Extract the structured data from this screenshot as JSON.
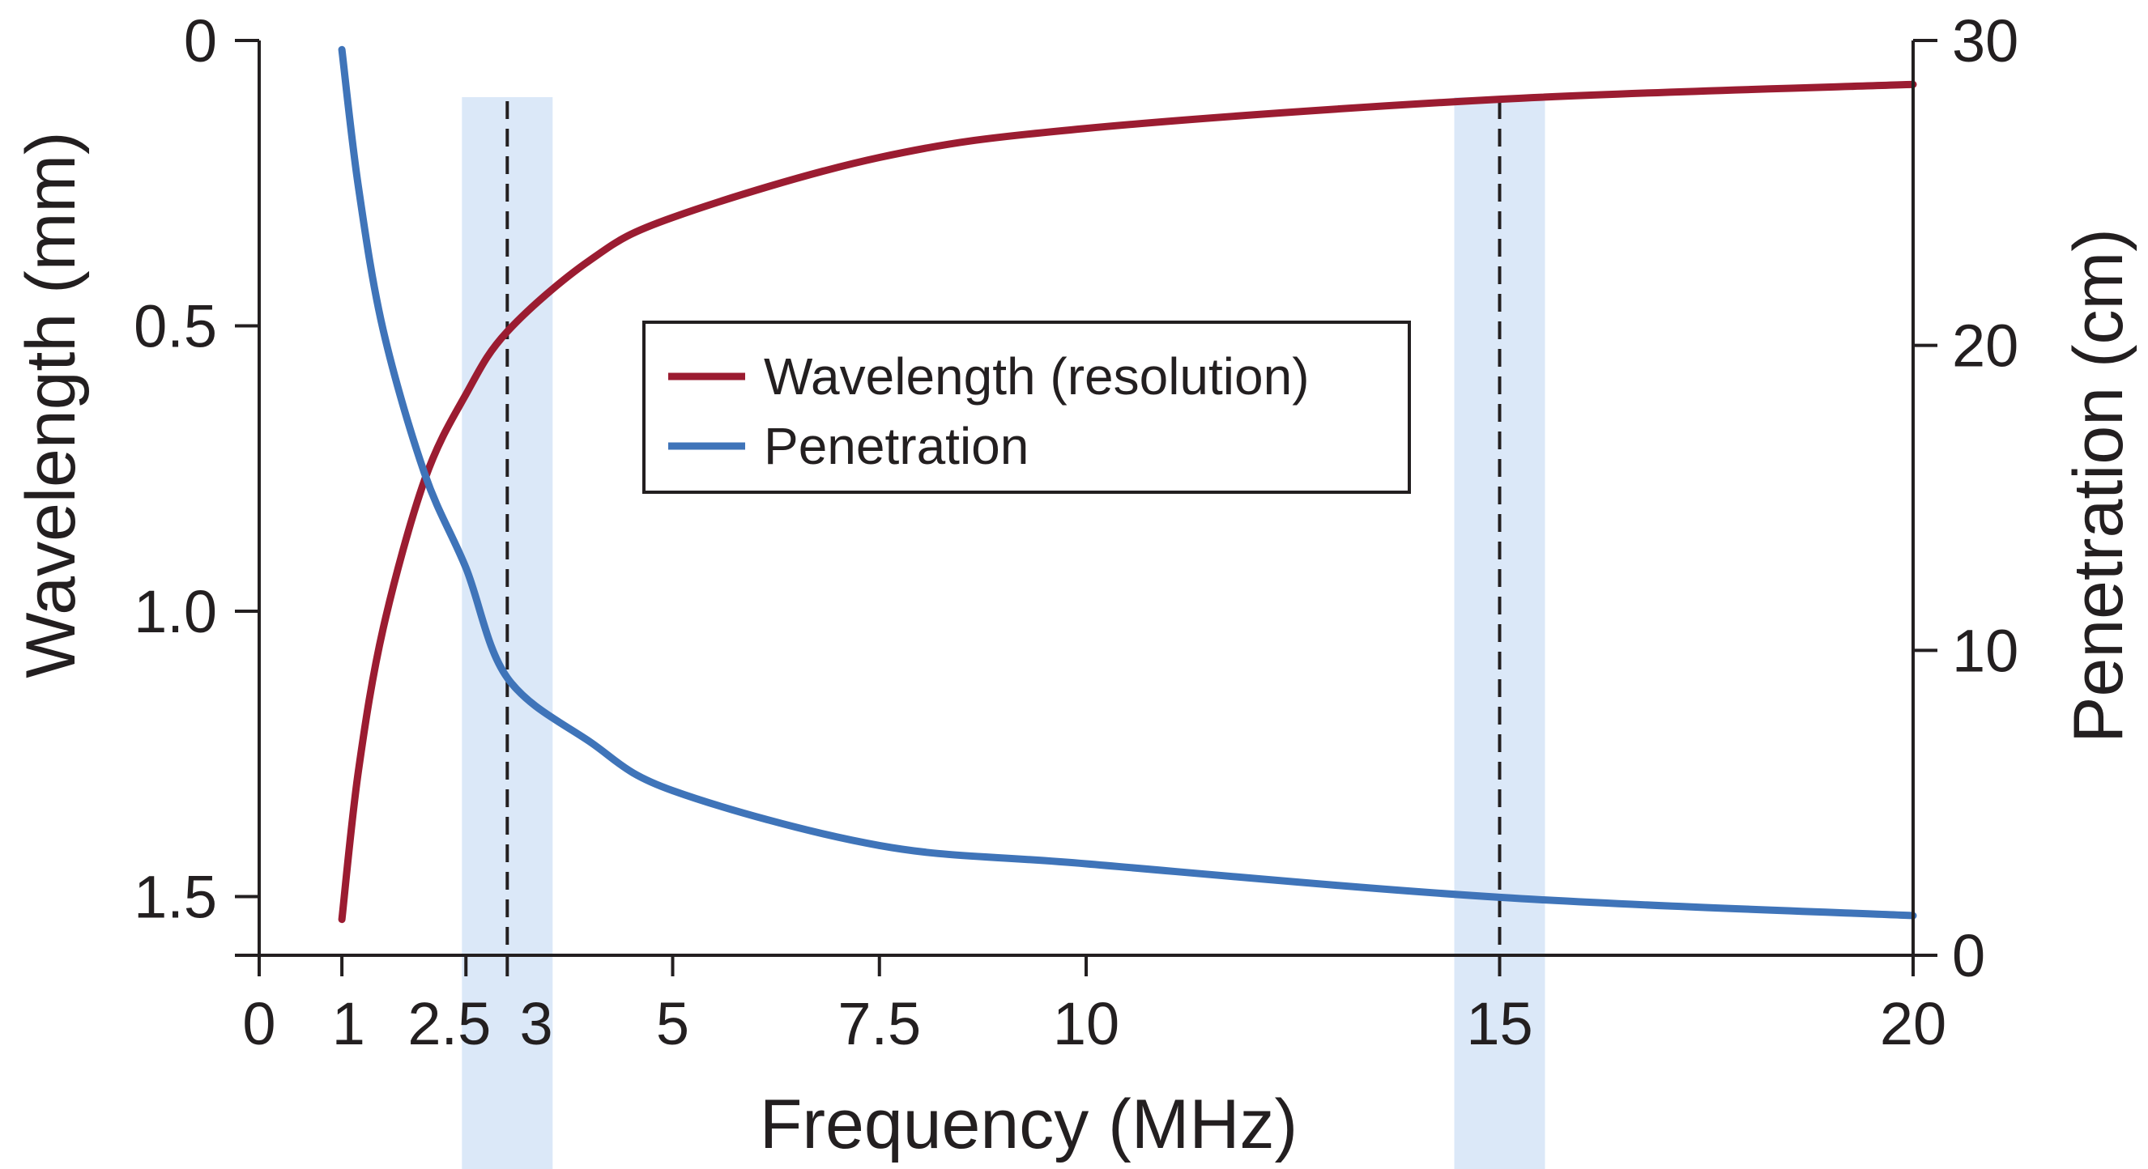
{
  "chart_data": {
    "type": "line",
    "xlabel": "Frequency (MHz)",
    "y_left_label": "Wavelength (mm)",
    "y_right_label": "Penetration (cm)",
    "x_tick_labels": [
      "0",
      "1",
      "2.5",
      "3",
      "5",
      "7.5",
      "10",
      "15",
      "20"
    ],
    "y_left_tick_labels": [
      "0",
      "0.5",
      "1.0",
      "1.5"
    ],
    "y_right_tick_labels": [
      "0",
      "10",
      "20",
      "30"
    ],
    "y_left_inverted": true,
    "grid": false,
    "legend_position": "center",
    "highlight_frequencies": [
      3,
      15
    ],
    "series": [
      {
        "name": "Wavelength (resolution)",
        "axis": "left",
        "color": "#9b1c31",
        "x": [
          1,
          1.2,
          1.5,
          2,
          2.5,
          3,
          4,
          5,
          7.5,
          10,
          15,
          20
        ],
        "y": [
          1.54,
          1.28,
          1.03,
          0.77,
          0.62,
          0.51,
          0.385,
          0.31,
          0.205,
          0.154,
          0.103,
          0.077
        ]
      },
      {
        "name": "Penetration",
        "axis": "right",
        "color": "#3f74b9",
        "x": [
          1,
          1.2,
          1.5,
          2,
          2.5,
          3,
          4,
          5,
          7.5,
          10,
          15,
          20
        ],
        "y": [
          29.7,
          25.2,
          20.5,
          15.8,
          12.7,
          9.1,
          7.0,
          5.4,
          3.6,
          3.0,
          1.9,
          1.3
        ]
      }
    ]
  }
}
